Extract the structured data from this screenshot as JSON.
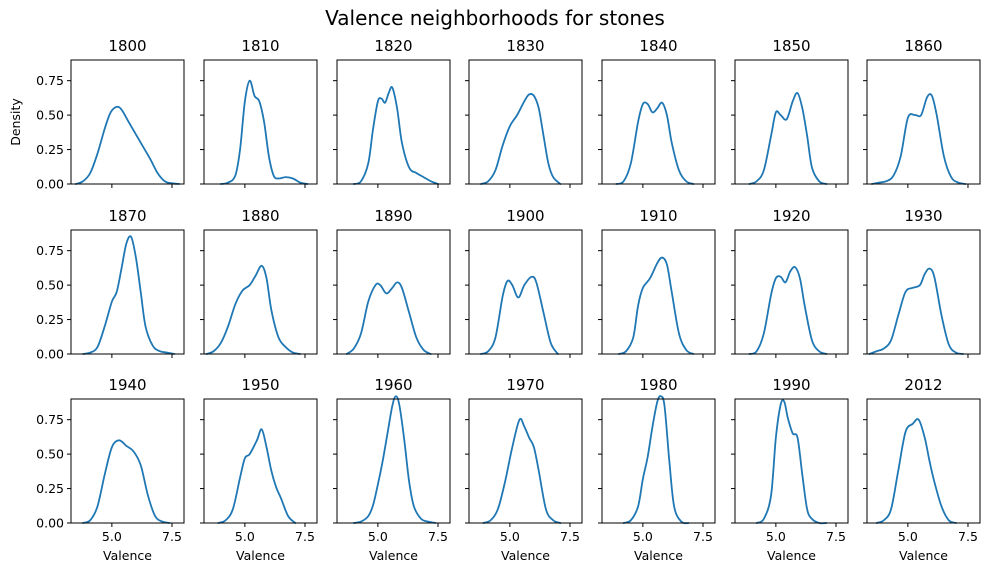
{
  "figure": {
    "title": "Valence neighborhoods for stones"
  },
  "chart_data": {
    "type": "line",
    "title": "Valence neighborhoods for stones",
    "xlabel": "Valence",
    "ylabel": "Density",
    "xlim": [
      3.3,
      8.0
    ],
    "ylim": [
      0,
      0.9
    ],
    "xticks": [
      5.0,
      7.5
    ],
    "xtick_labels": [
      "5.0",
      "7.5"
    ],
    "yticks": [
      0.0,
      0.25,
      0.5,
      0.75
    ],
    "ytick_labels": [
      "0.00",
      "0.25",
      "0.50",
      "0.75"
    ],
    "grid": false,
    "legend": "none",
    "line_color": "#1f77b4",
    "panels": [
      {
        "title": "1800",
        "x": [
          3.5,
          3.8,
          4.1,
          4.4,
          4.7,
          4.95,
          5.2,
          5.4,
          5.7,
          6.0,
          6.3,
          6.6,
          6.9,
          7.2,
          7.5,
          7.8
        ],
        "y": [
          0.0,
          0.02,
          0.08,
          0.22,
          0.4,
          0.52,
          0.56,
          0.54,
          0.45,
          0.36,
          0.27,
          0.18,
          0.08,
          0.02,
          0.005,
          0.0
        ]
      },
      {
        "title": "1810",
        "x": [
          4.0,
          4.3,
          4.6,
          4.8,
          5.0,
          5.2,
          5.4,
          5.6,
          5.8,
          6.0,
          6.2,
          6.4,
          6.7,
          7.0,
          7.3,
          7.6
        ],
        "y": [
          0.0,
          0.01,
          0.06,
          0.25,
          0.6,
          0.75,
          0.64,
          0.6,
          0.45,
          0.2,
          0.06,
          0.04,
          0.05,
          0.04,
          0.01,
          0.0
        ]
      },
      {
        "title": "1820",
        "x": [
          4.0,
          4.3,
          4.6,
          4.8,
          5.0,
          5.15,
          5.3,
          5.45,
          5.6,
          5.8,
          6.0,
          6.3,
          6.6,
          6.9,
          7.2,
          7.5
        ],
        "y": [
          0.0,
          0.02,
          0.15,
          0.4,
          0.6,
          0.62,
          0.59,
          0.66,
          0.7,
          0.55,
          0.3,
          0.12,
          0.08,
          0.05,
          0.02,
          0.0
        ]
      },
      {
        "title": "1830",
        "x": [
          3.8,
          4.1,
          4.4,
          4.7,
          5.0,
          5.3,
          5.6,
          5.8,
          6.0,
          6.2,
          6.4,
          6.6,
          6.8,
          7.1
        ],
        "y": [
          0.0,
          0.02,
          0.1,
          0.28,
          0.42,
          0.5,
          0.6,
          0.65,
          0.64,
          0.55,
          0.35,
          0.15,
          0.05,
          0.0
        ]
      },
      {
        "title": "1840",
        "x": [
          3.9,
          4.2,
          4.5,
          4.8,
          5.0,
          5.2,
          5.4,
          5.6,
          5.8,
          6.0,
          6.2,
          6.5,
          6.8,
          7.1
        ],
        "y": [
          0.0,
          0.02,
          0.15,
          0.45,
          0.58,
          0.58,
          0.52,
          0.55,
          0.59,
          0.5,
          0.3,
          0.1,
          0.02,
          0.0
        ]
      },
      {
        "title": "1850",
        "x": [
          3.9,
          4.2,
          4.5,
          4.8,
          5.0,
          5.2,
          5.45,
          5.7,
          5.9,
          6.1,
          6.3,
          6.5,
          6.8,
          7.1
        ],
        "y": [
          0.0,
          0.02,
          0.1,
          0.35,
          0.52,
          0.5,
          0.47,
          0.6,
          0.66,
          0.55,
          0.35,
          0.12,
          0.02,
          0.0
        ]
      },
      {
        "title": "1860",
        "x": [
          3.5,
          3.8,
          4.1,
          4.4,
          4.7,
          5.0,
          5.3,
          5.55,
          5.8,
          6.0,
          6.2,
          6.5,
          6.8,
          7.1,
          7.4
        ],
        "y": [
          0.0,
          0.01,
          0.02,
          0.06,
          0.2,
          0.48,
          0.5,
          0.5,
          0.63,
          0.64,
          0.5,
          0.2,
          0.05,
          0.01,
          0.0
        ]
      },
      {
        "title": "1870",
        "x": [
          3.8,
          4.1,
          4.4,
          4.7,
          5.0,
          5.2,
          5.4,
          5.6,
          5.8,
          6.0,
          6.2,
          6.4,
          6.7,
          7.0,
          7.3,
          7.6
        ],
        "y": [
          0.0,
          0.01,
          0.05,
          0.2,
          0.38,
          0.45,
          0.62,
          0.8,
          0.85,
          0.7,
          0.45,
          0.2,
          0.06,
          0.02,
          0.01,
          0.0
        ]
      },
      {
        "title": "1880",
        "x": [
          3.4,
          3.7,
          4.0,
          4.3,
          4.6,
          4.9,
          5.2,
          5.45,
          5.7,
          5.9,
          6.1,
          6.4,
          6.7,
          7.0,
          7.3
        ],
        "y": [
          0.0,
          0.02,
          0.08,
          0.2,
          0.36,
          0.46,
          0.5,
          0.57,
          0.64,
          0.55,
          0.32,
          0.12,
          0.05,
          0.01,
          0.0
        ]
      },
      {
        "title": "1890",
        "x": [
          3.7,
          4.0,
          4.3,
          4.6,
          4.9,
          5.1,
          5.35,
          5.6,
          5.8,
          6.0,
          6.3,
          6.6,
          6.9,
          7.2
        ],
        "y": [
          0.0,
          0.04,
          0.15,
          0.38,
          0.5,
          0.5,
          0.44,
          0.48,
          0.52,
          0.48,
          0.3,
          0.12,
          0.03,
          0.0
        ]
      },
      {
        "title": "1900",
        "x": [
          3.8,
          4.1,
          4.4,
          4.7,
          4.9,
          5.1,
          5.35,
          5.6,
          5.9,
          6.1,
          6.4,
          6.7,
          7.0
        ],
        "y": [
          0.0,
          0.02,
          0.12,
          0.42,
          0.53,
          0.5,
          0.41,
          0.5,
          0.56,
          0.52,
          0.3,
          0.08,
          0.0
        ]
      },
      {
        "title": "1910",
        "x": [
          4.0,
          4.3,
          4.6,
          4.8,
          5.0,
          5.3,
          5.6,
          5.8,
          6.0,
          6.2,
          6.5,
          6.8,
          7.1
        ],
        "y": [
          0.0,
          0.02,
          0.12,
          0.35,
          0.48,
          0.55,
          0.66,
          0.7,
          0.65,
          0.45,
          0.15,
          0.03,
          0.0
        ]
      },
      {
        "title": "1920",
        "x": [
          3.9,
          4.2,
          4.5,
          4.8,
          5.0,
          5.2,
          5.4,
          5.6,
          5.8,
          6.0,
          6.2,
          6.5,
          6.8,
          7.1
        ],
        "y": [
          0.0,
          0.02,
          0.15,
          0.43,
          0.55,
          0.56,
          0.52,
          0.6,
          0.63,
          0.55,
          0.35,
          0.1,
          0.02,
          0.0
        ]
      },
      {
        "title": "1930",
        "x": [
          3.4,
          3.7,
          4.0,
          4.3,
          4.6,
          4.9,
          5.2,
          5.5,
          5.7,
          5.9,
          6.1,
          6.4,
          6.7,
          7.0,
          7.3
        ],
        "y": [
          0.0,
          0.02,
          0.04,
          0.1,
          0.28,
          0.45,
          0.48,
          0.5,
          0.58,
          0.62,
          0.56,
          0.28,
          0.07,
          0.01,
          0.0
        ]
      },
      {
        "title": "1940",
        "x": [
          3.8,
          4.1,
          4.4,
          4.7,
          5.0,
          5.3,
          5.6,
          5.9,
          6.2,
          6.5,
          6.8,
          7.1,
          7.4
        ],
        "y": [
          0.0,
          0.02,
          0.12,
          0.35,
          0.55,
          0.6,
          0.56,
          0.52,
          0.42,
          0.2,
          0.05,
          0.01,
          0.0
        ]
      },
      {
        "title": "1950",
        "x": [
          3.9,
          4.2,
          4.5,
          4.8,
          5.0,
          5.2,
          5.5,
          5.7,
          5.9,
          6.1,
          6.3,
          6.5,
          6.8,
          7.1
        ],
        "y": [
          0.0,
          0.02,
          0.1,
          0.33,
          0.47,
          0.5,
          0.6,
          0.68,
          0.55,
          0.38,
          0.26,
          0.18,
          0.05,
          0.0
        ]
      },
      {
        "title": "1960",
        "x": [
          4.0,
          4.3,
          4.6,
          4.8,
          5.0,
          5.2,
          5.4,
          5.6,
          5.75,
          5.9,
          6.1,
          6.3,
          6.5,
          6.8,
          7.1,
          7.4
        ],
        "y": [
          0.0,
          0.01,
          0.05,
          0.13,
          0.28,
          0.45,
          0.65,
          0.85,
          0.92,
          0.85,
          0.6,
          0.3,
          0.12,
          0.03,
          0.01,
          0.0
        ]
      },
      {
        "title": "1970",
        "x": [
          3.9,
          4.2,
          4.5,
          4.8,
          5.1,
          5.4,
          5.6,
          5.8,
          6.0,
          6.2,
          6.5,
          6.8,
          7.1
        ],
        "y": [
          0.0,
          0.02,
          0.1,
          0.3,
          0.55,
          0.75,
          0.7,
          0.62,
          0.55,
          0.38,
          0.1,
          0.02,
          0.0
        ]
      },
      {
        "title": "1980",
        "x": [
          4.2,
          4.5,
          4.8,
          5.0,
          5.2,
          5.4,
          5.6,
          5.75,
          5.9,
          6.1,
          6.3,
          6.6,
          6.9
        ],
        "y": [
          0.0,
          0.02,
          0.12,
          0.32,
          0.48,
          0.7,
          0.88,
          0.92,
          0.85,
          0.45,
          0.12,
          0.01,
          0.0
        ]
      },
      {
        "title": "1990",
        "x": [
          4.2,
          4.5,
          4.8,
          5.0,
          5.2,
          5.35,
          5.5,
          5.7,
          5.9,
          6.1,
          6.3,
          6.5,
          6.8,
          7.1
        ],
        "y": [
          0.0,
          0.03,
          0.2,
          0.62,
          0.86,
          0.88,
          0.76,
          0.65,
          0.62,
          0.35,
          0.1,
          0.03,
          0.0,
          0.0
        ]
      },
      {
        "title": "2012",
        "x": [
          3.7,
          4.0,
          4.3,
          4.6,
          4.9,
          5.2,
          5.45,
          5.7,
          5.9,
          6.1,
          6.4,
          6.7,
          7.0
        ],
        "y": [
          0.0,
          0.02,
          0.1,
          0.38,
          0.66,
          0.72,
          0.75,
          0.62,
          0.45,
          0.3,
          0.12,
          0.02,
          0.0
        ]
      }
    ]
  }
}
